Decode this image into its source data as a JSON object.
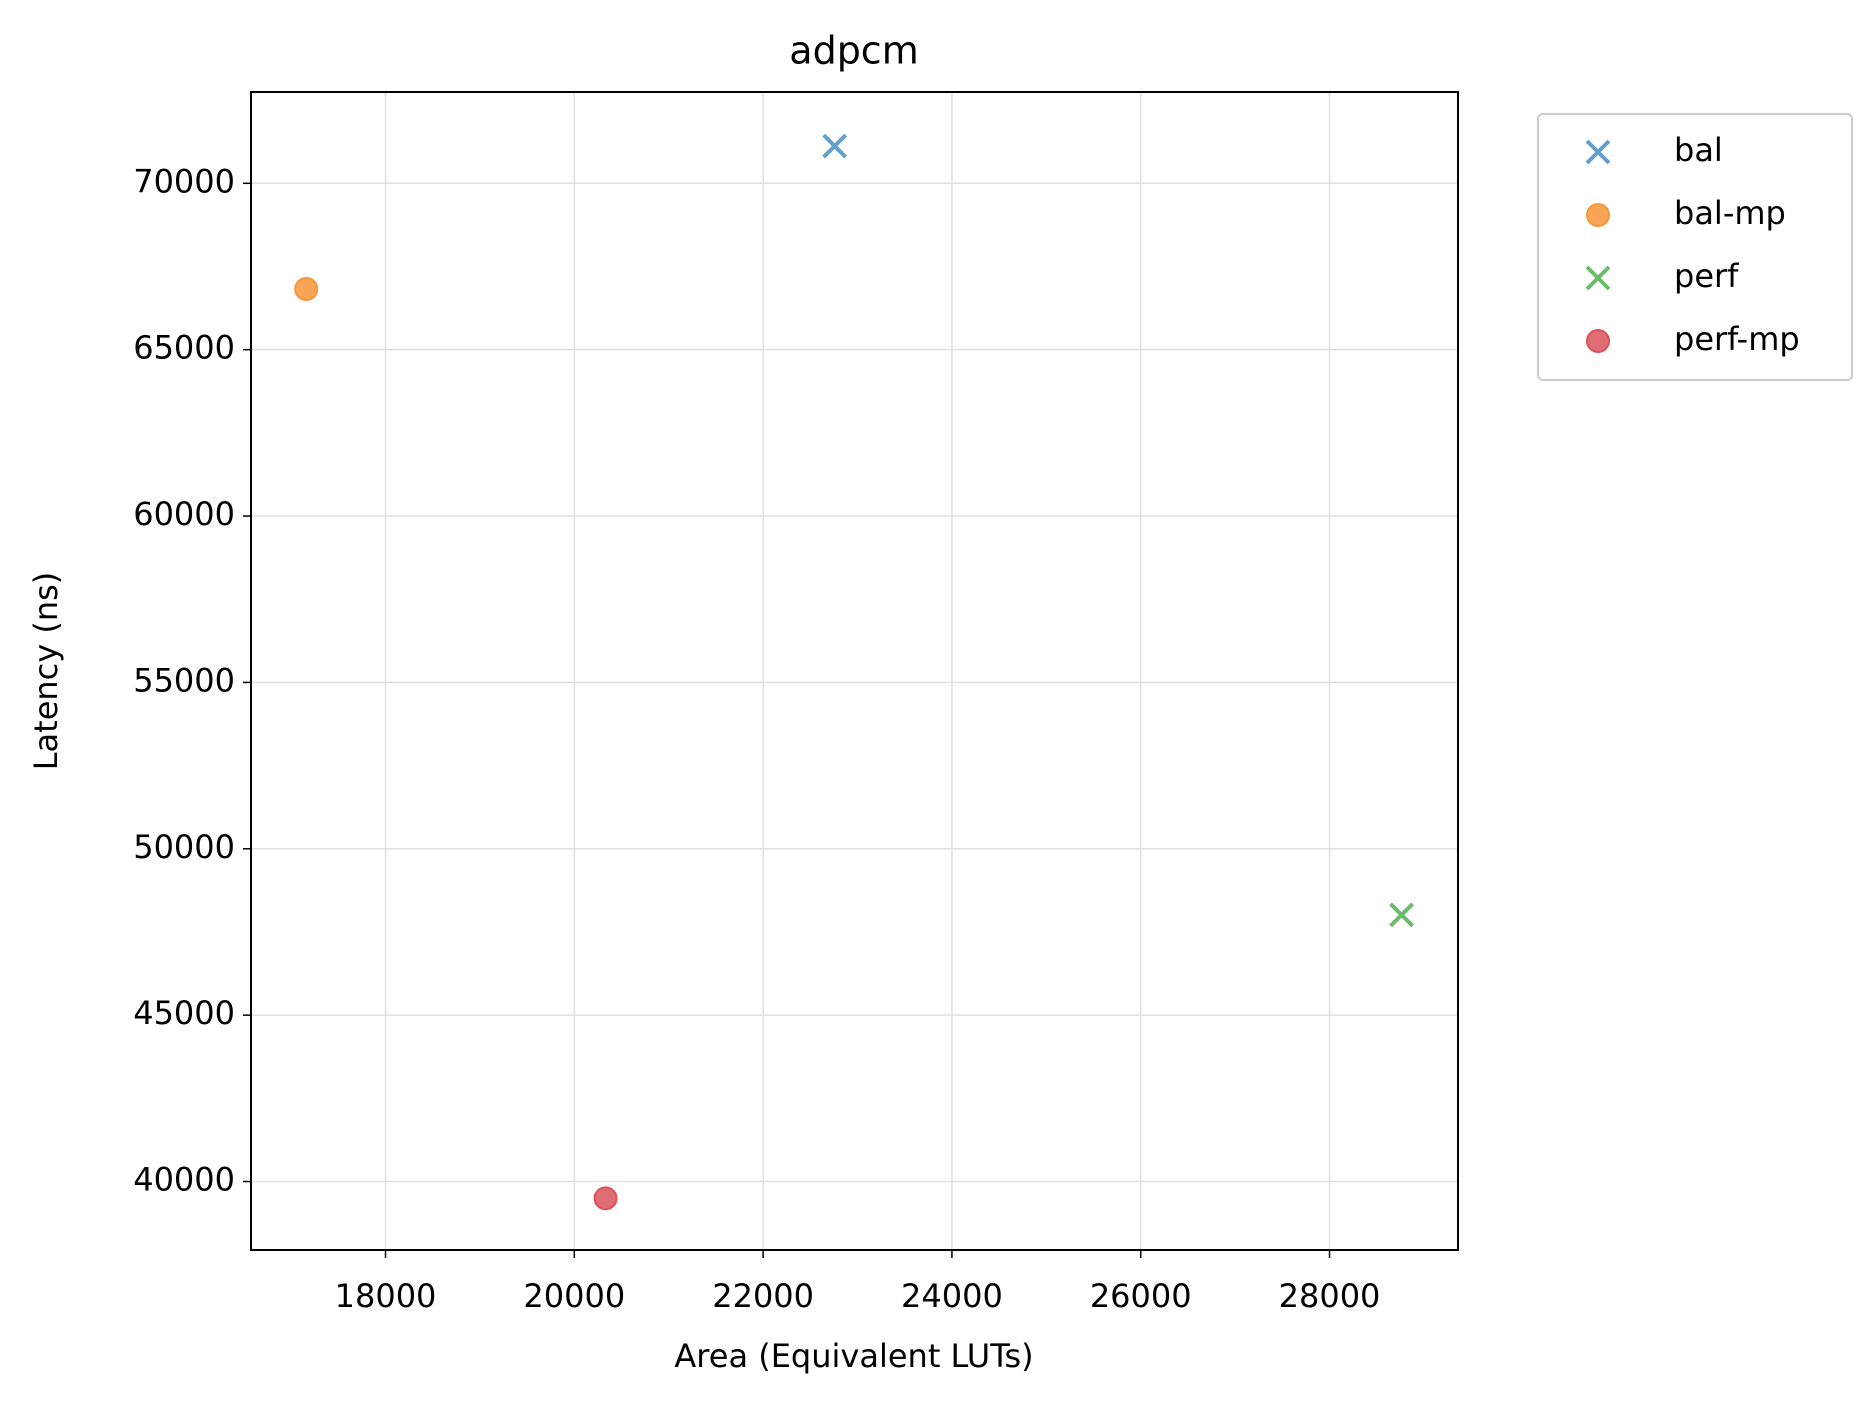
{
  "chart_data": {
    "type": "scatter",
    "title": "adpcm",
    "x_label": "Area (Equivalent LUTs)",
    "y_label": "Latency (ns)",
    "xlim": [
      16575,
      29361
    ],
    "xticks": [
      18000,
      20000,
      22000,
      24000,
      26000,
      28000
    ],
    "ylim": [
      37942,
      72744
    ],
    "yticks": [
      40000,
      45000,
      50000,
      55000,
      60000,
      65000,
      70000
    ],
    "grid": true,
    "legend": "outside-right",
    "series": [
      {
        "name": "bal",
        "color": "#5b9bc8",
        "marker": "x",
        "x": [
          22758
        ],
        "values": [
          71119
        ]
      },
      {
        "name": "bal-mp",
        "color": "#f8953a",
        "marker": "o",
        "x": [
          17160
        ],
        "values": [
          66823
        ]
      },
      {
        "name": "perf",
        "color": "#63b862",
        "marker": "x",
        "x": [
          28763
        ],
        "values": [
          48014
        ]
      },
      {
        "name": "perf-mp",
        "color": "#d9545a",
        "marker": "o",
        "x": [
          20331
        ],
        "values": [
          39495
        ]
      }
    ]
  }
}
